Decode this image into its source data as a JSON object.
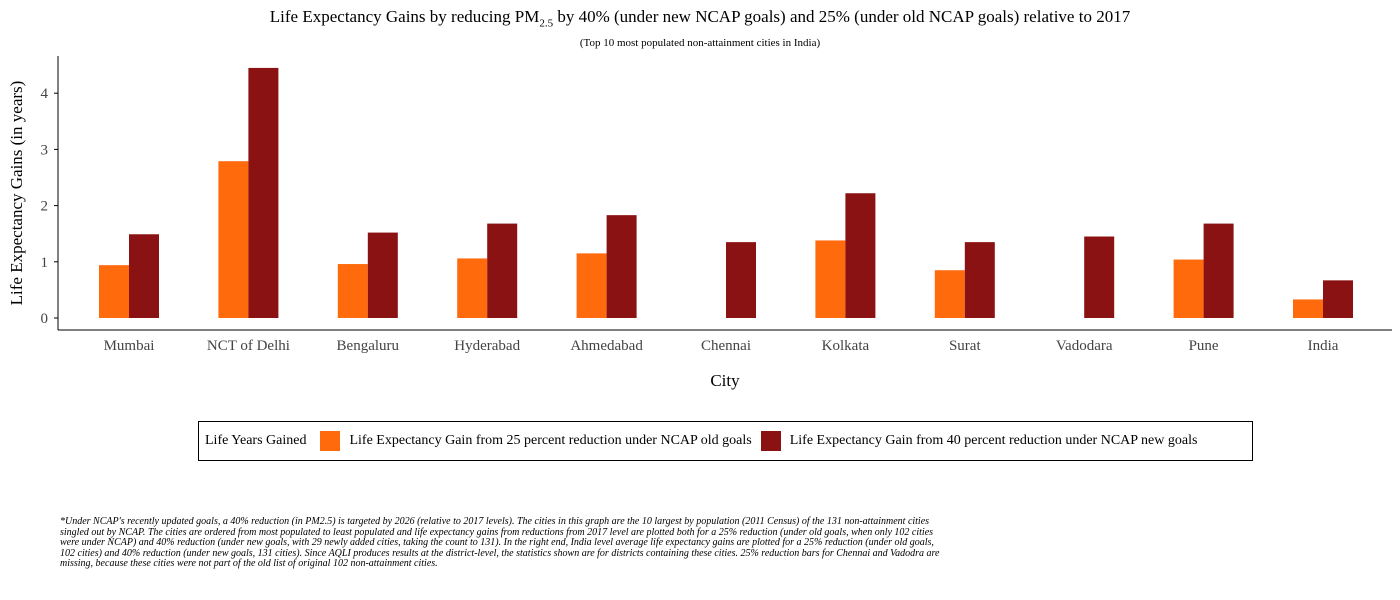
{
  "title": {
    "main": "Life Expectancy Gains by reducing PM",
    "sub": "2.5",
    "rest": " by 40% (under new NCAP goals) and 25% (under old NCAP goals) relative to 2017"
  },
  "subtitle": "(Top 10 most populated non-attainment cities in India)",
  "legend": {
    "title": "Life Years Gained",
    "items": [
      {
        "label": "Life Expectancy Gain from 25 percent reduction under NCAP old goals",
        "color": "#ff6a0c"
      },
      {
        "label": "Life Expectancy Gain from 40 percent reduction under NCAP new goals",
        "color": "#8b1212"
      }
    ]
  },
  "footnote": "*Under NCAP's recently updated goals, a 40% reduction (in PM2.5) is targeted by 2026 (relative to 2017 levels). The cities in this graph are the 10 largest by population (2011 Census) of the 131 non-attainment cities singled out by NCAP. The cities are ordered from most populated to least populated and life expectancy gains from reductions from 2017 level are plotted both for a 25% reduction (under old goals, when only 102 cities were under NCAP) and 40% reduction (under new goals, with 29 newly added cities, taking the count to 131). In the right end, India level average life expectancy gains are plotted for a 25% reduction (under old goals, 102 cities) and 40% reduction (under new goals, 131 cities). Since AQLI produces results at the district-level, the statistics shown are for districts containing these cities. 25% reduction bars for Chennai and Vadodra are missing, because these cities were not part of the old list of original 102 non-attainment cities.",
  "chart_data": {
    "type": "bar",
    "xlabel": "City",
    "ylabel": "Life Expectancy Gains (in years)",
    "ylim": [
      0,
      4.7
    ],
    "yticks": [
      0,
      1,
      2,
      3,
      4
    ],
    "grid": false,
    "legend_position": "bottom",
    "categories": [
      "Mumbai",
      "NCT of Delhi",
      "Bengaluru",
      "Hyderabad",
      "Ahmedabad",
      "Chennai",
      "Kolkata",
      "Surat",
      "Vadodara",
      "Pune",
      "India"
    ],
    "series": [
      {
        "name": "Life Expectancy Gain from 25 percent reduction under NCAP old goals",
        "color": "#ff6a0c",
        "values": [
          0.94,
          2.79,
          0.96,
          1.06,
          1.15,
          null,
          1.38,
          0.85,
          null,
          1.04,
          0.33
        ]
      },
      {
        "name": "Life Expectancy Gain from 40 percent reduction under NCAP new goals",
        "color": "#8b1212",
        "values": [
          1.49,
          4.45,
          1.52,
          1.68,
          1.83,
          1.35,
          2.22,
          1.35,
          1.45,
          1.68,
          0.67
        ]
      }
    ]
  }
}
